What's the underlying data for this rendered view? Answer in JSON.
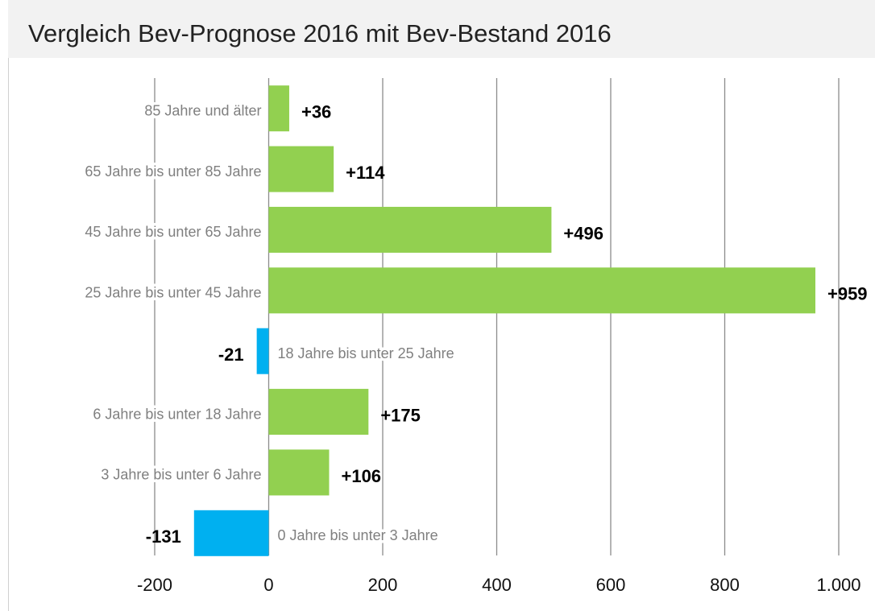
{
  "chart_data": {
    "type": "bar",
    "orientation": "horizontal",
    "title": "Vergleich Bev-Prognose 2016 mit Bev-Bestand 2016",
    "categories": [
      "85 Jahre und älter",
      "65 Jahre bis unter 85 Jahre",
      "45 Jahre bis unter 65 Jahre",
      "25 Jahre bis unter 45 Jahre",
      "18 Jahre bis unter 25 Jahre",
      "6 Jahre bis unter 18 Jahre",
      "3 Jahre bis unter 6 Jahre",
      "0 Jahre bis unter 3 Jahre"
    ],
    "values": [
      36,
      114,
      496,
      959,
      -21,
      175,
      106,
      -131
    ],
    "value_labels": [
      "+36",
      "+114",
      "+496",
      "+959",
      "-21",
      "+175",
      "+106",
      "-131"
    ],
    "positive_color": "#92d050",
    "negative_color": "#00b0f0",
    "xlim": [
      -200,
      1000
    ],
    "xticks": [
      -200,
      0,
      200,
      400,
      600,
      800,
      {
        "value": 1000,
        "label": "1.000"
      }
    ],
    "grid": true
  }
}
